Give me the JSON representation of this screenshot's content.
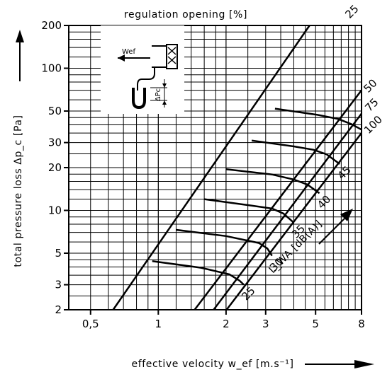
{
  "chart_data": {
    "type": "line",
    "title": "regulation opening [%]",
    "xlabel": "effective velocity w_ef [m.s⁻¹]",
    "ylabel": "total pressure loss Δp_c [Pa]",
    "x_scale": "log",
    "y_scale": "log",
    "xlim": [
      0.4,
      8
    ],
    "ylim": [
      2,
      200
    ],
    "x_ticks": [
      {
        "value": 0.5,
        "label": "0,5"
      },
      {
        "value": 1,
        "label": "1"
      },
      {
        "value": 2,
        "label": "2"
      },
      {
        "value": 3,
        "label": "3"
      },
      {
        "value": 5,
        "label": "5"
      },
      {
        "value": 8,
        "label": "8"
      }
    ],
    "y_ticks": [
      {
        "value": 2,
        "label": "2"
      },
      {
        "value": 3,
        "label": "3"
      },
      {
        "value": 5,
        "label": "5"
      },
      {
        "value": 10,
        "label": "10"
      },
      {
        "value": 20,
        "label": "20"
      },
      {
        "value": 30,
        "label": "30"
      },
      {
        "value": 50,
        "label": "50"
      },
      {
        "value": 100,
        "label": "100"
      },
      {
        "value": 200,
        "label": "200"
      }
    ],
    "grid": true,
    "series": [
      {
        "name": "25",
        "points": [
          [
            0.63,
            2
          ],
          [
            4.7,
            200
          ]
        ]
      },
      {
        "name": "50",
        "points": [
          [
            1.45,
            2
          ],
          [
            8,
            70
          ]
        ]
      },
      {
        "name": "75",
        "points": [
          [
            1.76,
            2
          ],
          [
            8,
            48
          ]
        ]
      },
      {
        "name": "100",
        "points": [
          [
            2.01,
            2
          ],
          [
            8,
            35
          ]
        ]
      }
    ],
    "noise_series": [
      {
        "name": "25",
        "points": [
          [
            0.94,
            4.4
          ],
          [
            1.55,
            3.95
          ],
          [
            2.07,
            3.55
          ],
          [
            2.3,
            3.2
          ],
          [
            2.4,
            3.0
          ]
        ]
      },
      {
        "name": "30",
        "points": [
          [
            1.2,
            7.3
          ],
          [
            2.0,
            6.6
          ],
          [
            2.8,
            5.9
          ],
          [
            3.05,
            5.4
          ],
          [
            3.2,
            4.8
          ]
        ]
      },
      {
        "name": "35",
        "points": [
          [
            1.6,
            12
          ],
          [
            2.6,
            10.8
          ],
          [
            3.2,
            10.3
          ],
          [
            3.6,
            9.5
          ],
          [
            4.0,
            8.2
          ]
        ]
      },
      {
        "name": "40",
        "points": [
          [
            2.0,
            19.5
          ],
          [
            3.2,
            17.9
          ],
          [
            4.0,
            16.5
          ],
          [
            4.6,
            15.2
          ],
          [
            5.2,
            13.2
          ]
        ]
      },
      {
        "name": "45",
        "points": [
          [
            2.6,
            31
          ],
          [
            4.0,
            28.2
          ],
          [
            4.9,
            26.7
          ],
          [
            5.6,
            24.8
          ],
          [
            6.4,
            21.2
          ]
        ]
      },
      {
        "name": "",
        "points": [
          [
            3.3,
            52
          ],
          [
            5.1,
            47
          ],
          [
            6.3,
            44
          ],
          [
            7.2,
            40.5
          ],
          [
            8,
            37
          ]
        ]
      }
    ],
    "noise_axis_label": "L_WA [dB(A)]",
    "inset": {
      "velocity_label": "Wef",
      "pressure_label": "ΔPc"
    }
  }
}
